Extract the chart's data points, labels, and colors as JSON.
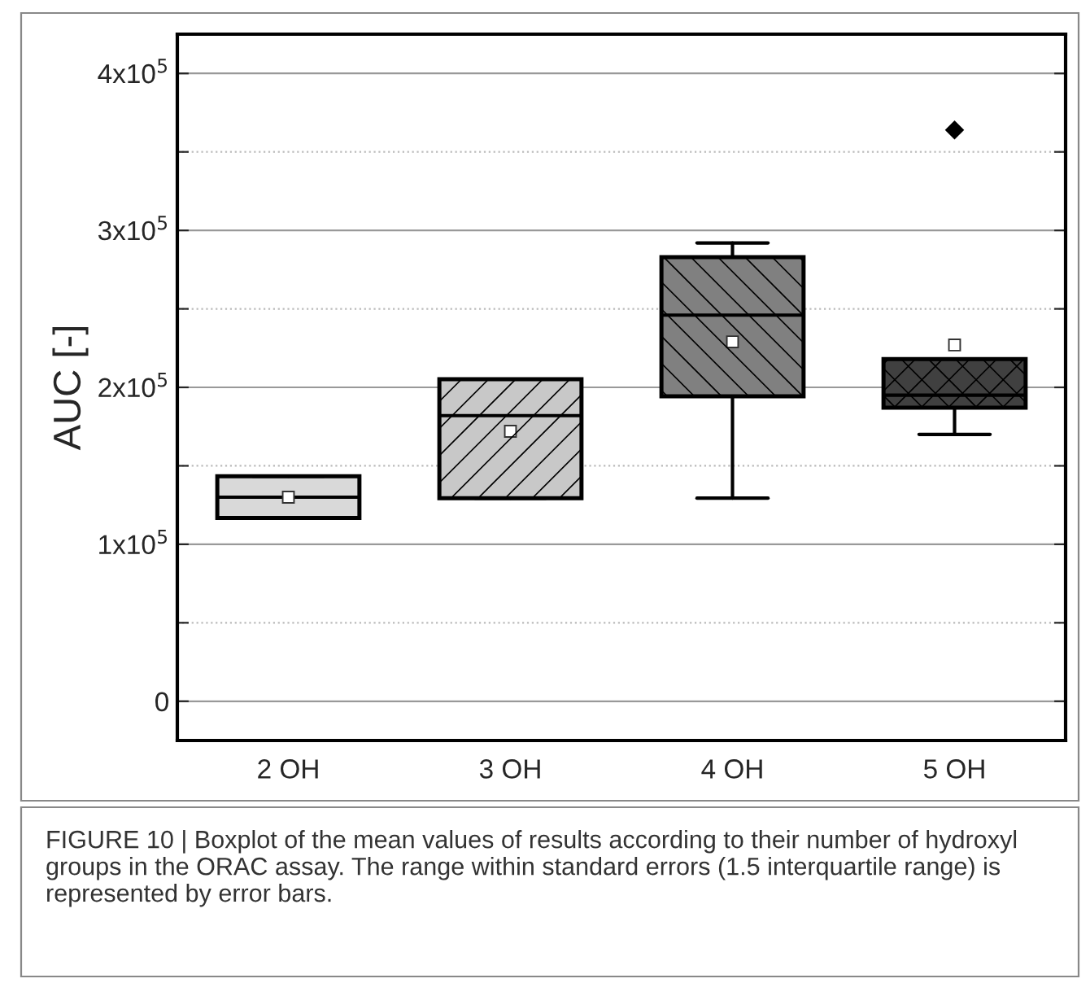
{
  "chart_data": {
    "type": "box",
    "ylabel": "AUC [-]",
    "categories": [
      "2 OH",
      "3 OH",
      "4 OH",
      "5 OH"
    ],
    "colors": [
      "#d9d9d9",
      "#c8c8c8",
      "#808080",
      "#404040"
    ],
    "boxes": [
      {
        "low": 116800,
        "q1": 116800,
        "median": 130000,
        "q3": 143400,
        "high": 143400,
        "mean": 130000
      },
      {
        "low": 129400,
        "q1": 129400,
        "median": 182000,
        "q3": 205200,
        "high": 205200,
        "mean": 172000
      },
      {
        "low": 129400,
        "q1": 194300,
        "median": 246000,
        "q3": 283000,
        "high": 292000,
        "mean": 229000
      },
      {
        "low": 170000,
        "q1": 187000,
        "median": 195000,
        "q3": 218000,
        "high": 218000,
        "mean": 227000,
        "outliers": [
          364000
        ]
      }
    ],
    "ylim": [
      -25000,
      425000
    ],
    "yticks": [
      {
        "value": 0,
        "label": "0"
      },
      {
        "value": 50000,
        "label": null
      },
      {
        "value": 100000,
        "label": "1x10$^{5}$"
      },
      {
        "value": 150000,
        "label": null
      },
      {
        "value": 200000,
        "label": "2x10$^{5}$"
      },
      {
        "value": 250000,
        "label": null
      },
      {
        "value": 300000,
        "label": "3x10$^{5}$"
      },
      {
        "value": 350000,
        "label": null
      },
      {
        "value": 400000,
        "label": "4x10$^{5}$"
      }
    ],
    "grid": "y",
    "annotations": [
      "FIGURE 10 | Boxplot of the mean values of results according to their number of hydroxyl groups in the ORAC assay. The range within standard errors (1.5 interquartile range) is represented by error bars."
    ]
  }
}
